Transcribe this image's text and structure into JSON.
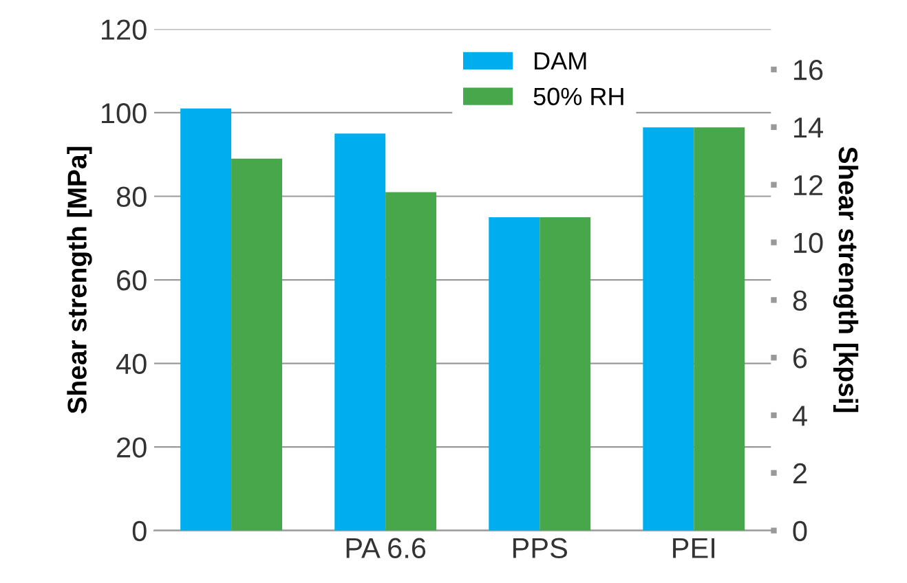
{
  "chart_data": {
    "type": "bar",
    "categories": [
      null,
      "PA 6.6",
      "PPS",
      "PEI"
    ],
    "series": [
      {
        "name": "DAM",
        "color": "#00aeef",
        "values": [
          101,
          95,
          75,
          96.5
        ]
      },
      {
        "name": "50% RH",
        "color": "#46a84a",
        "values": [
          89,
          81,
          75,
          96.5
        ]
      }
    ],
    "ylabel": "Shear strength [MPa]",
    "y2label": "Shear strength [kpsi]",
    "ylim": [
      0,
      120
    ],
    "yticks": [
      0,
      20,
      40,
      60,
      80,
      100,
      120
    ],
    "y2lim": [
      0,
      17.4
    ],
    "y2ticks": [
      0,
      2,
      4,
      6,
      8,
      10,
      12,
      14,
      16
    ],
    "grid": "y",
    "legend": "top right"
  }
}
